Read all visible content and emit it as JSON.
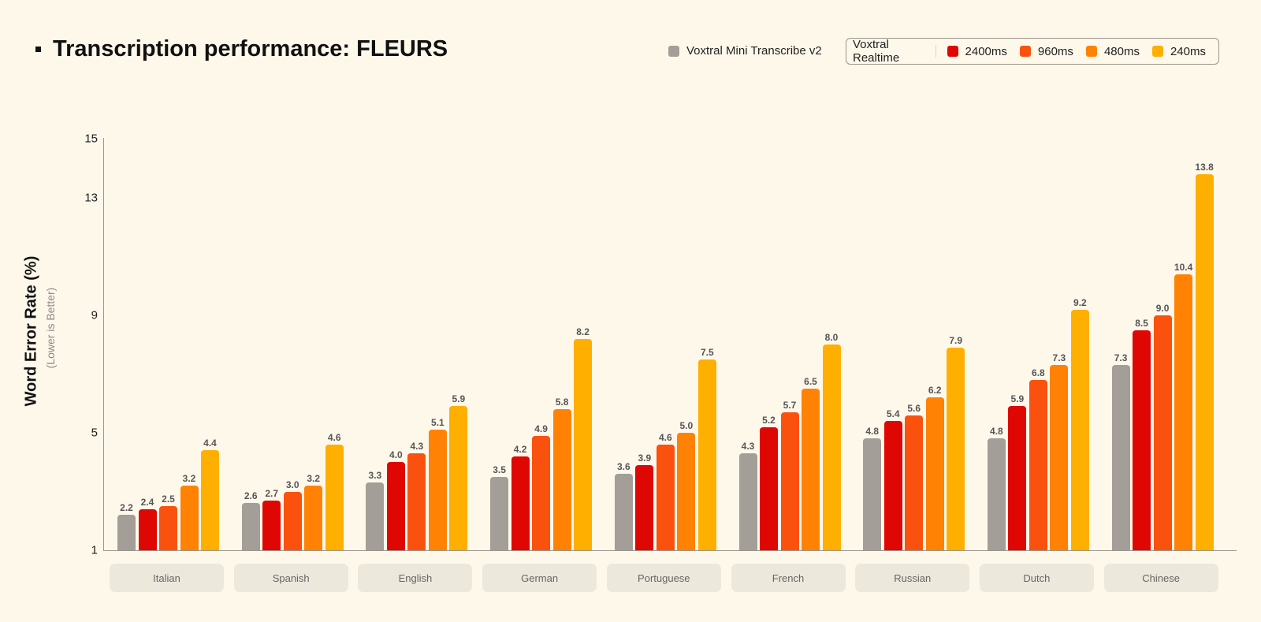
{
  "title": "Transcription performance: FLEURS",
  "legend": {
    "baseline": {
      "label": "Voxtral Mini Transcribe v2",
      "color": "#a39e97"
    },
    "group_label": "Voxtral Realtime",
    "items": [
      {
        "label": "2400ms",
        "color": "#df0703"
      },
      {
        "label": "960ms",
        "color": "#fb510f"
      },
      {
        "label": "480ms",
        "color": "#ff8205"
      },
      {
        "label": "240ms",
        "color": "#ffaf00"
      }
    ]
  },
  "axis": {
    "ylabel": "Word Error Rate (%)",
    "ylabel_sub": "(Lower is Better)",
    "yticks": [
      "15",
      "13",
      "9",
      "5",
      "1"
    ]
  },
  "chart_data": {
    "type": "bar",
    "title": "Transcription performance: FLEURS",
    "xlabel": "",
    "ylabel": "Word Error Rate (%) (Lower is Better)",
    "ylim": [
      1,
      15
    ],
    "yticks": [
      1,
      5,
      9,
      13,
      15
    ],
    "grid": false,
    "legend_position": "top-right",
    "categories": [
      "Italian",
      "Spanish",
      "English",
      "German",
      "Portuguese",
      "French",
      "Russian",
      "Dutch",
      "Chinese"
    ],
    "series": [
      {
        "name": "Voxtral Mini Transcribe v2",
        "color": "#a39e97",
        "values": [
          2.2,
          2.6,
          3.3,
          3.5,
          3.6,
          4.3,
          4.8,
          4.8,
          7.3
        ]
      },
      {
        "name": "Voxtral Realtime 2400ms",
        "color": "#df0703",
        "values": [
          2.4,
          2.7,
          4.0,
          4.2,
          3.9,
          5.2,
          5.4,
          5.9,
          8.5
        ]
      },
      {
        "name": "Voxtral Realtime 960ms",
        "color": "#fb510f",
        "values": [
          2.5,
          3.0,
          4.3,
          4.9,
          4.6,
          5.7,
          5.6,
          6.8,
          9.0
        ]
      },
      {
        "name": "Voxtral Realtime 480ms",
        "color": "#ff8205",
        "values": [
          3.2,
          3.2,
          5.1,
          5.8,
          5.0,
          6.5,
          6.2,
          7.3,
          10.4
        ]
      },
      {
        "name": "Voxtral Realtime 240ms",
        "color": "#ffaf00",
        "values": [
          4.4,
          4.6,
          5.9,
          8.2,
          7.5,
          8.0,
          7.9,
          9.2,
          13.8
        ]
      }
    ]
  }
}
